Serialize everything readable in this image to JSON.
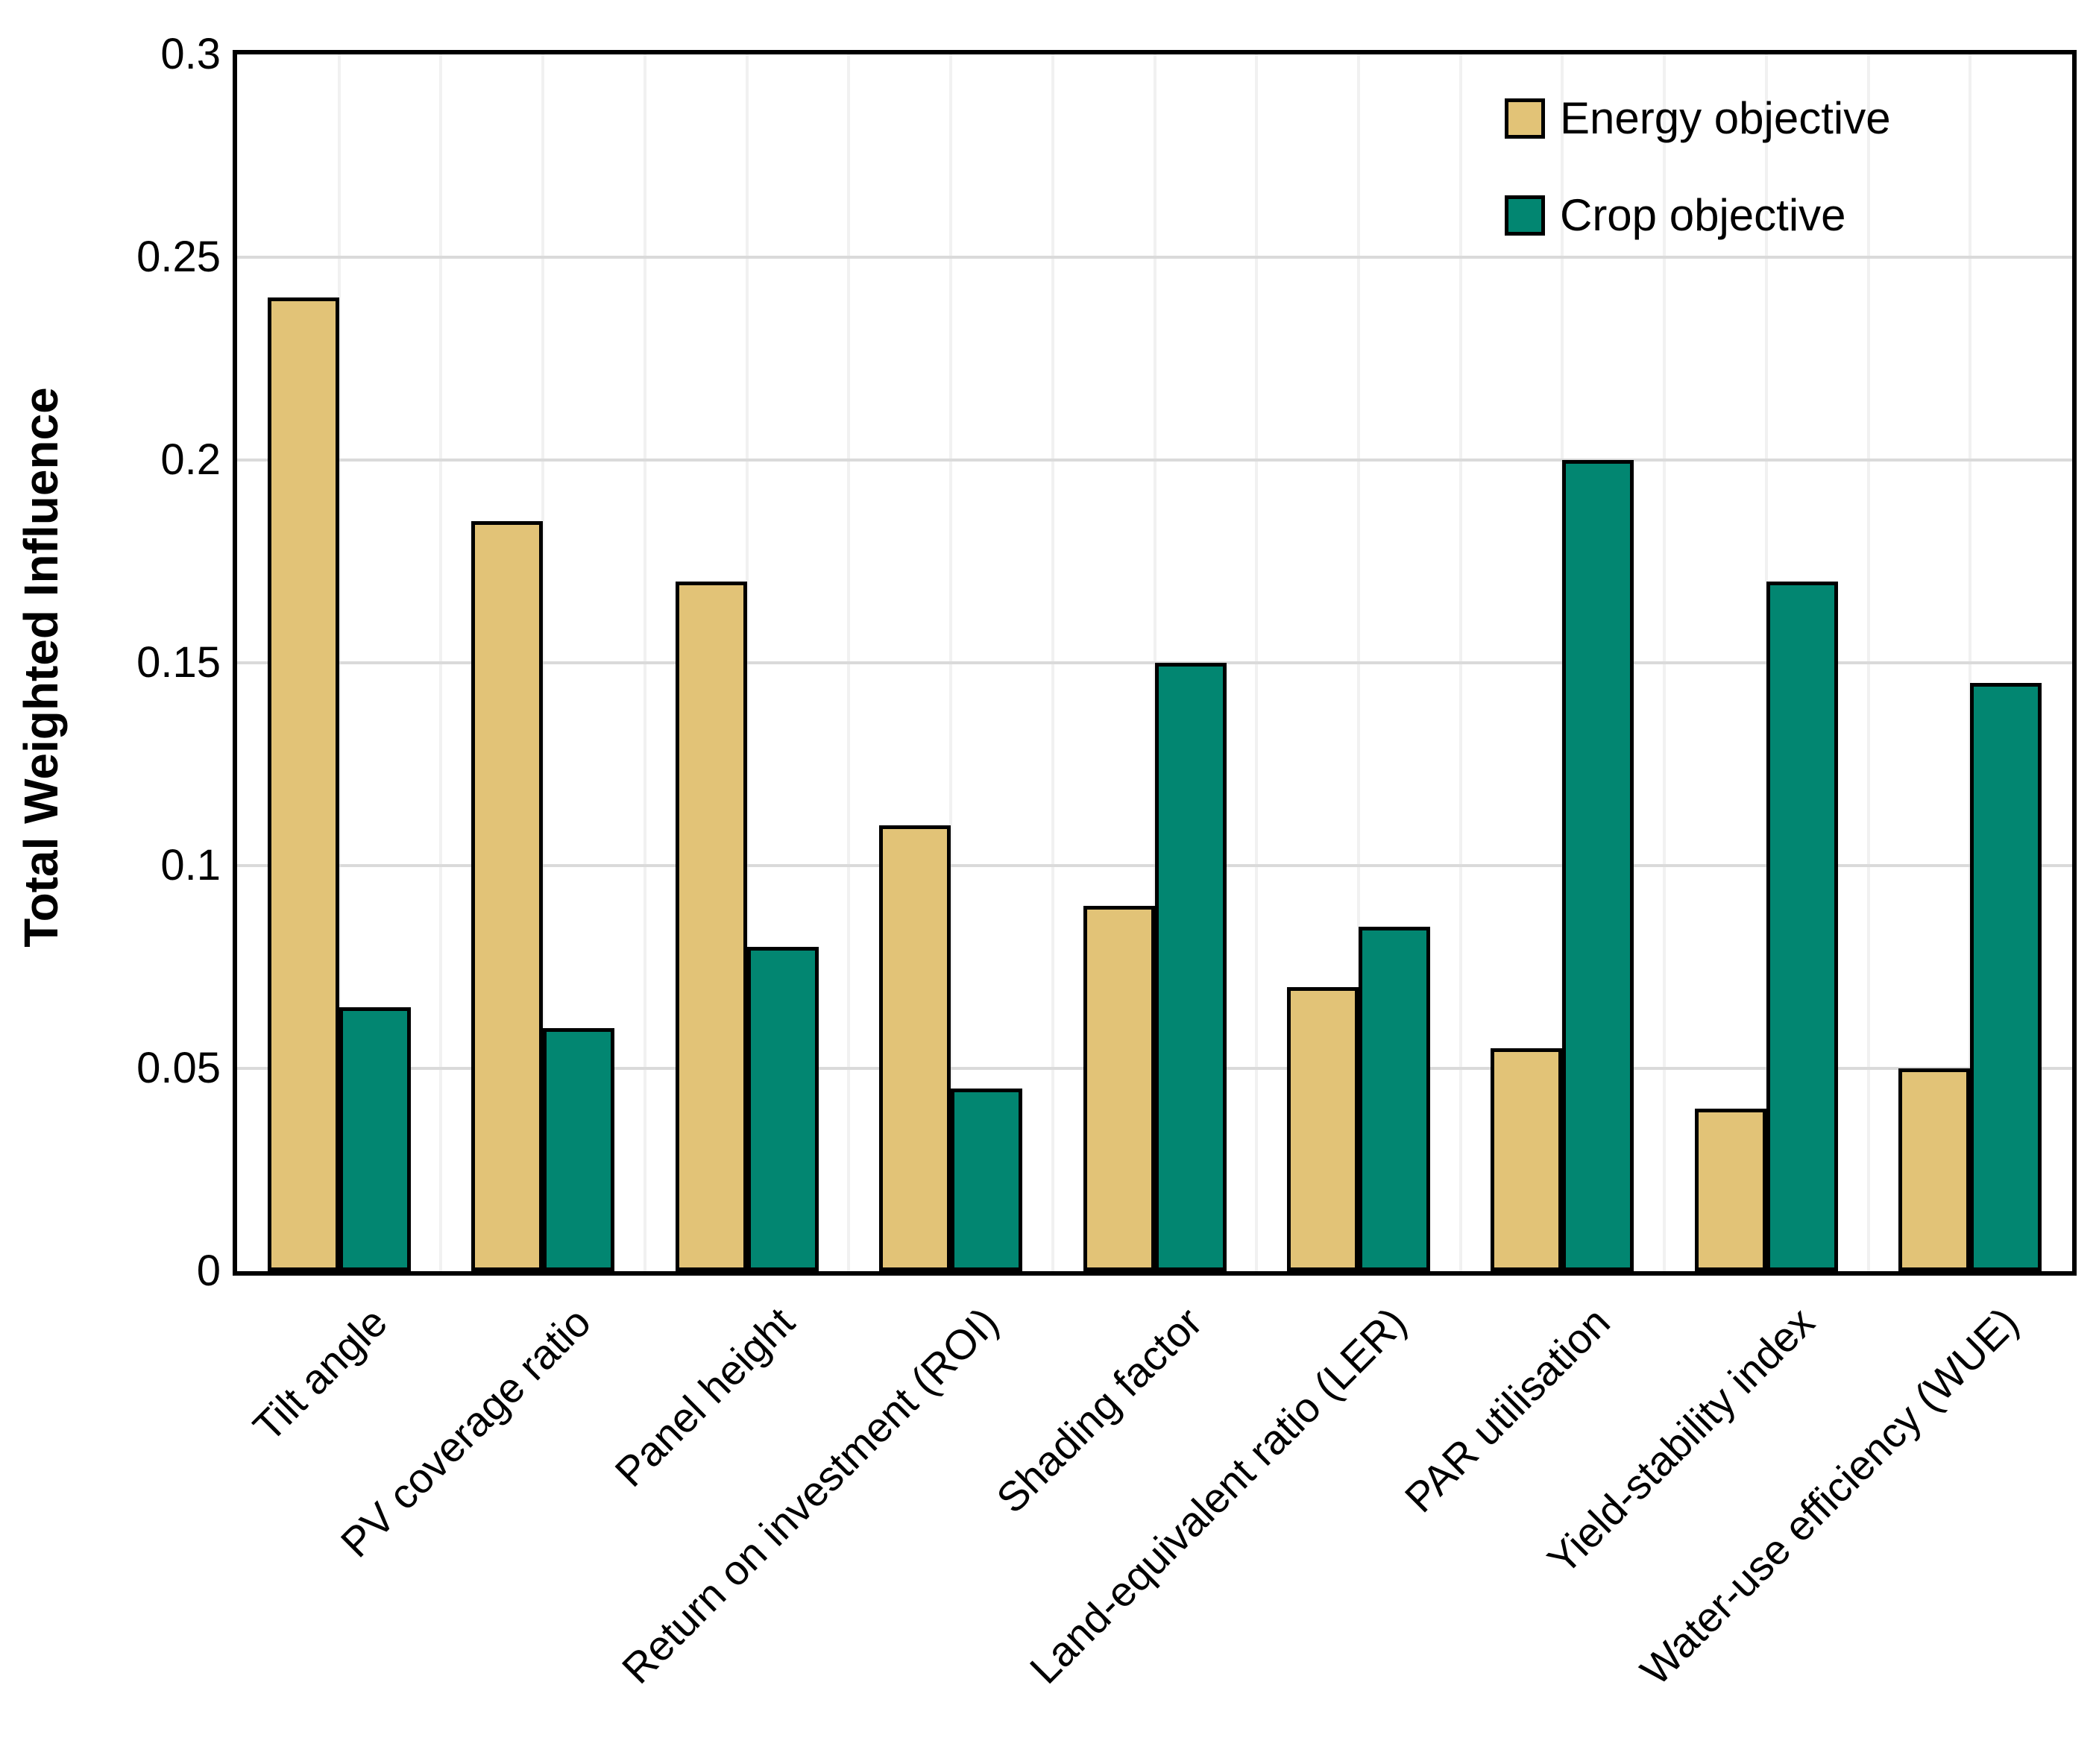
{
  "chart_data": {
    "type": "bar",
    "title": "",
    "xlabel": "",
    "ylabel": "Total Weighted Influence",
    "ylim": [
      0,
      0.3
    ],
    "ytick_labels": [
      "0",
      "0.05",
      "0.1",
      "0.15",
      "0.2",
      "0.25",
      "0.3"
    ],
    "ytick_values": [
      0,
      0.05,
      0.1,
      0.15,
      0.2,
      0.25,
      0.3
    ],
    "grid": "horizontal major gridlines + lighter vertical minor gridlines, framed plot box",
    "legend_position": "top-right inside plot",
    "categories": [
      "Tilt angle",
      "PV coverage ratio",
      "Panel height",
      "Return on investment (ROI)",
      "Shading factor",
      "Land-equivalent ratio (LER)",
      "PAR utilisation",
      "Yield-stability index",
      "Water-use efficiency (WUE)"
    ],
    "series": [
      {
        "name": "Energy objective",
        "color": "#e2c377",
        "values": [
          0.24,
          0.185,
          0.17,
          0.11,
          0.09,
          0.07,
          0.055,
          0.04,
          0.05
        ]
      },
      {
        "name": "Crop objective",
        "color": "#028671",
        "values": [
          0.065,
          0.06,
          0.08,
          0.045,
          0.15,
          0.085,
          0.2,
          0.17,
          0.145
        ]
      }
    ]
  },
  "styles": {
    "bar_border_color": "#000000",
    "hgrid_color": "#dadada",
    "vgrid_color": "#f1f1f1",
    "frame_color": "#000000"
  }
}
